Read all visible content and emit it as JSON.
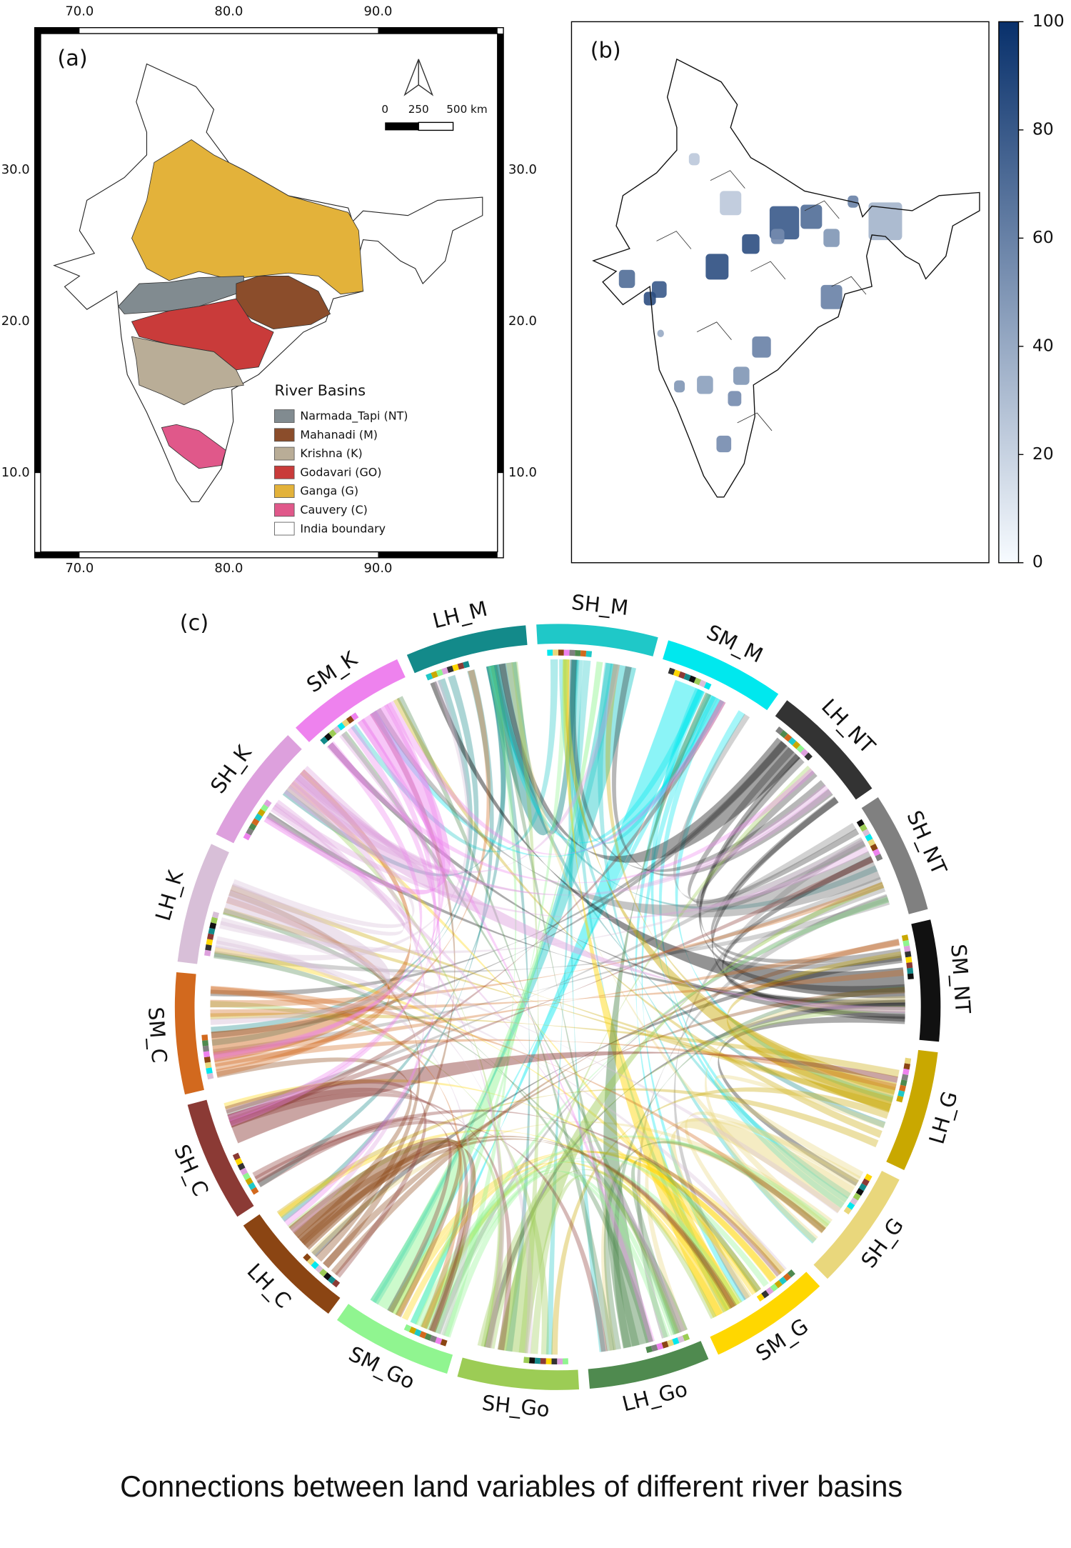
{
  "panel_a": {
    "label": "(a)",
    "xlim": [
      67,
      98.4
    ],
    "ylim": [
      4.4,
      39.4
    ],
    "lon_ticks": [
      {
        "value": 70,
        "label": "70.0"
      },
      {
        "value": 80,
        "label": "80.0"
      },
      {
        "value": 90,
        "label": "90.0"
      }
    ],
    "lat_ticks": [
      {
        "value": 30,
        "label": "30.0"
      },
      {
        "value": 20,
        "label": "20.0"
      },
      {
        "value": 10,
        "label": "10.0"
      }
    ],
    "scale_bar": [
      "0",
      "250",
      "500 km"
    ],
    "legend": {
      "title": "River Basins",
      "items": [
        {
          "name": "Narmada_Tapi (NT)",
          "color": "#818b90"
        },
        {
          "name": "Mahanadi (M)",
          "color": "#8b4d2b"
        },
        {
          "name": "Krishna (K)",
          "color": "#b9ad97"
        },
        {
          "name": "Godavari (GO)",
          "color": "#c93b3a"
        },
        {
          "name": "Ganga (G)",
          "color": "#e3b23a"
        },
        {
          "name": "Cauvery (C)",
          "color": "#e0588a"
        },
        {
          "name": "India boundary",
          "color": "#ffffff"
        }
      ]
    }
  },
  "panel_b": {
    "label": "(b)",
    "colorbar": {
      "lim": [
        0,
        100
      ],
      "ticks": [
        0,
        20,
        40,
        60,
        80,
        100
      ],
      "colors": [
        "#f7fbff",
        "#08306b"
      ]
    }
  },
  "panel_c": {
    "label": "(c)",
    "segments": [
      {
        "name": "LH_M",
        "color": "#138a8a"
      },
      {
        "name": "SH_M",
        "color": "#1fc8c8"
      },
      {
        "name": "SM_M",
        "color": "#00e8ee"
      },
      {
        "name": "LH_NT",
        "color": "#333333"
      },
      {
        "name": "SH_NT",
        "color": "#808080"
      },
      {
        "name": "SM_NT",
        "color": "#111111"
      },
      {
        "name": "LH_G",
        "color": "#c9a800"
      },
      {
        "name": "SH_G",
        "color": "#e9d77c"
      },
      {
        "name": "SM_G",
        "color": "#ffd700"
      },
      {
        "name": "LH_Go",
        "color": "#4f8a4f"
      },
      {
        "name": "SH_Go",
        "color": "#9ccc55"
      },
      {
        "name": "SM_Go",
        "color": "#90f590"
      },
      {
        "name": "LH_C",
        "color": "#8b4513"
      },
      {
        "name": "SH_C",
        "color": "#8b3a35"
      },
      {
        "name": "SM_C",
        "color": "#d2691e"
      },
      {
        "name": "LH_K",
        "color": "#d8bfd8"
      },
      {
        "name": "SH_K",
        "color": "#dda0dd"
      },
      {
        "name": "SM_K",
        "color": "#ee82ee"
      }
    ]
  },
  "caption": "Connections between land variables of different river basins"
}
